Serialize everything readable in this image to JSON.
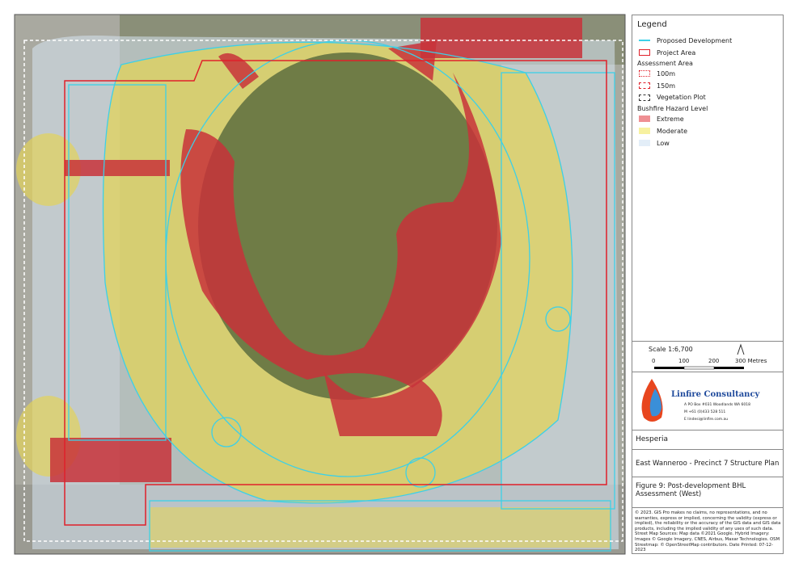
{
  "legend": {
    "title": "Legend",
    "items": [
      {
        "label": "Proposed Development"
      },
      {
        "label": "Project Area"
      },
      {
        "label": "Assessment Area"
      },
      {
        "label": "100m"
      },
      {
        "label": "150m"
      },
      {
        "label": "Vegetation Plot"
      },
      {
        "label": "Bushfire Hazard Level"
      },
      {
        "label": "Extreme"
      },
      {
        "label": "Moderate"
      },
      {
        "label": "Low"
      }
    ]
  },
  "scale": {
    "title": "Scale 1:6,700",
    "labels": [
      "0",
      "100",
      "200",
      "300 Metres"
    ]
  },
  "logo": {
    "name": "Linfire Consultancy",
    "address": "A PO Box #031 Woodlands WA 6018",
    "phone": "M +61 (0)433 528 511",
    "email": "E lindesi@linfire.com.au"
  },
  "client": "Hesperia",
  "project": "East Wanneroo - Precinct 7 Structure Plan",
  "figure": "Figure 9: Post-development BHL Assessment (West)",
  "disclaimer": "© 2023. GIS Pro makes no claims, no representations, and no warranties, express or implied, concerning the validity (express or implied), the reliability or the accuracy of the GIS data and GIS data products, including the implied validity of any uses of such data. Street Map Sources: Map data ©2021 Google. Hybrid Imagery: Images © Google Imagery, CNES, Airbus, Maxar Technologies. OSM Streetmap: © OpenStreetMap contributors. Date Printed: 07-12-2023"
}
